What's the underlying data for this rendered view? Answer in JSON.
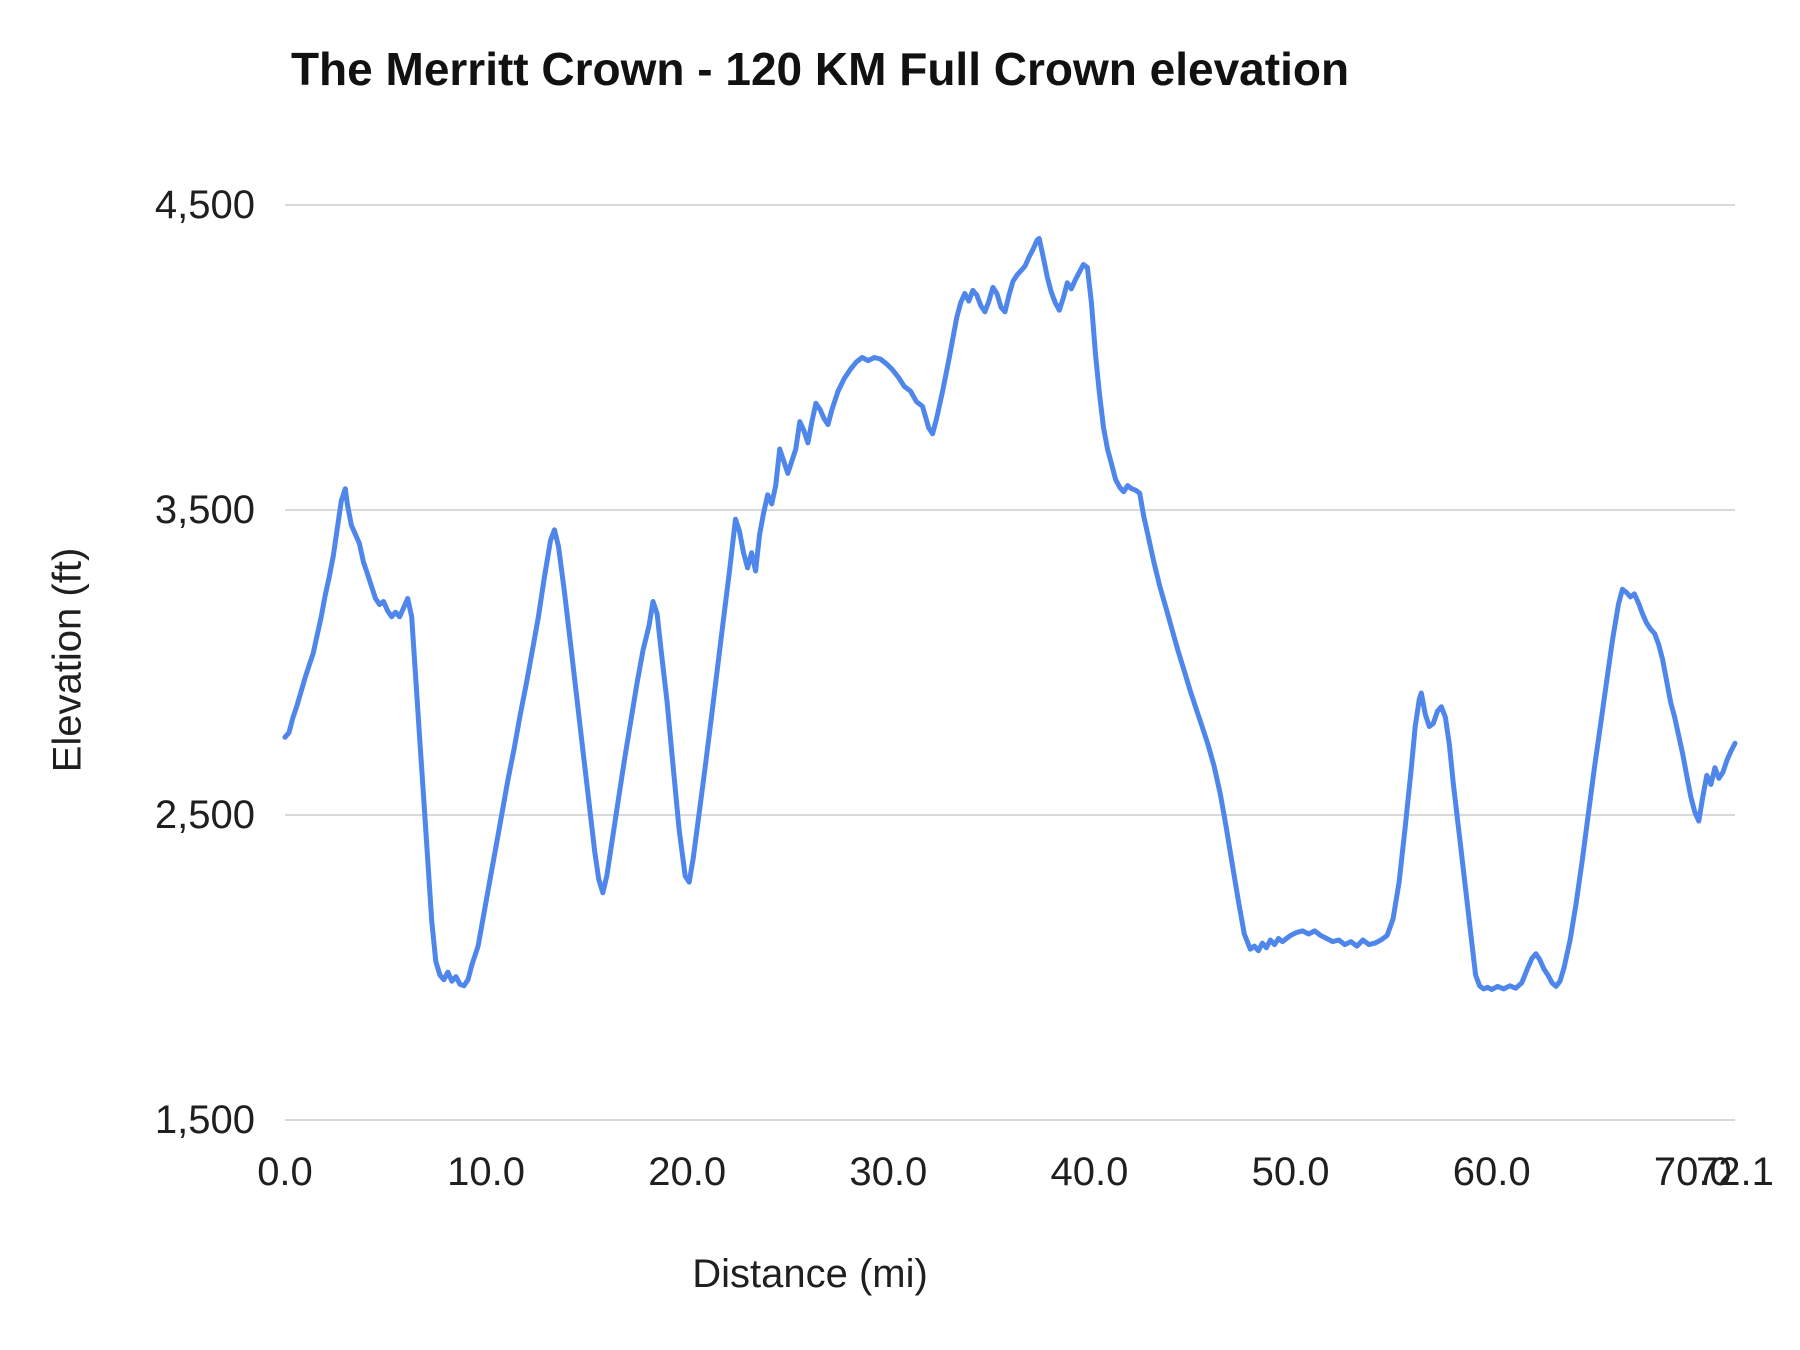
{
  "chart_data": {
    "type": "line",
    "title": "The Merritt Crown - 120 KM Full Crown elevation",
    "xlabel": "Distance (mi)",
    "ylabel": "Elevation (ft)",
    "xlim": [
      0,
      72.1
    ],
    "ylim": [
      1500,
      4500
    ],
    "grid": "horizontal-only",
    "legend": "none",
    "line_color": "#4e86ec",
    "grid_color": "#d9d9d9",
    "x_ticks": [
      {
        "value": 0,
        "label": "0.0"
      },
      {
        "value": 10,
        "label": "10.0"
      },
      {
        "value": 20,
        "label": "20.0"
      },
      {
        "value": 30,
        "label": "30.0"
      },
      {
        "value": 40,
        "label": "40.0"
      },
      {
        "value": 50,
        "label": "50.0"
      },
      {
        "value": 60,
        "label": "60.0"
      },
      {
        "value": 70,
        "label": "70.0"
      },
      {
        "value": 72.1,
        "label": "72.1"
      }
    ],
    "y_ticks": [
      {
        "value": 1500,
        "label": "1,500"
      },
      {
        "value": 2500,
        "label": "2,500"
      },
      {
        "value": 3500,
        "label": "3,500"
      },
      {
        "value": 4500,
        "label": "4,500"
      }
    ],
    "series": [
      {
        "name": "Elevation",
        "points": [
          [
            0,
            2755
          ],
          [
            0.2,
            2770
          ],
          [
            0.4,
            2820
          ],
          [
            0.6,
            2860
          ],
          [
            0.8,
            2905
          ],
          [
            1,
            2950
          ],
          [
            1.2,
            2990
          ],
          [
            1.4,
            3030
          ],
          [
            1.6,
            3090
          ],
          [
            1.8,
            3150
          ],
          [
            2,
            3220
          ],
          [
            2.2,
            3280
          ],
          [
            2.4,
            3350
          ],
          [
            2.6,
            3440
          ],
          [
            2.8,
            3530
          ],
          [
            3,
            3570
          ],
          [
            3.1,
            3520
          ],
          [
            3.3,
            3450
          ],
          [
            3.5,
            3420
          ],
          [
            3.7,
            3390
          ],
          [
            3.9,
            3330
          ],
          [
            4.1,
            3290
          ],
          [
            4.3,
            3250
          ],
          [
            4.5,
            3210
          ],
          [
            4.7,
            3190
          ],
          [
            4.9,
            3200
          ],
          [
            5.1,
            3170
          ],
          [
            5.3,
            3150
          ],
          [
            5.5,
            3165
          ],
          [
            5.7,
            3150
          ],
          [
            5.9,
            3180
          ],
          [
            6.1,
            3210
          ],
          [
            6.3,
            3150
          ],
          [
            6.5,
            2950
          ],
          [
            6.7,
            2750
          ],
          [
            6.9,
            2550
          ],
          [
            7.1,
            2350
          ],
          [
            7.3,
            2150
          ],
          [
            7.5,
            2020
          ],
          [
            7.7,
            1975
          ],
          [
            7.9,
            1960
          ],
          [
            8.1,
            1985
          ],
          [
            8.3,
            1955
          ],
          [
            8.5,
            1970
          ],
          [
            8.7,
            1945
          ],
          [
            8.9,
            1940
          ],
          [
            9.1,
            1960
          ],
          [
            9.3,
            2010
          ],
          [
            9.6,
            2070
          ],
          [
            9.9,
            2180
          ],
          [
            10.2,
            2290
          ],
          [
            10.5,
            2400
          ],
          [
            10.8,
            2510
          ],
          [
            11.1,
            2620
          ],
          [
            11.4,
            2720
          ],
          [
            11.7,
            2830
          ],
          [
            12,
            2930
          ],
          [
            12.3,
            3040
          ],
          [
            12.6,
            3150
          ],
          [
            12.9,
            3280
          ],
          [
            13.2,
            3400
          ],
          [
            13.4,
            3435
          ],
          [
            13.6,
            3380
          ],
          [
            13.9,
            3230
          ],
          [
            14.2,
            3060
          ],
          [
            14.5,
            2890
          ],
          [
            14.8,
            2720
          ],
          [
            15.1,
            2550
          ],
          [
            15.4,
            2380
          ],
          [
            15.6,
            2290
          ],
          [
            15.8,
            2245
          ],
          [
            16,
            2300
          ],
          [
            16.3,
            2430
          ],
          [
            16.6,
            2560
          ],
          [
            16.9,
            2690
          ],
          [
            17.2,
            2810
          ],
          [
            17.5,
            2930
          ],
          [
            17.8,
            3040
          ],
          [
            18.1,
            3120
          ],
          [
            18.3,
            3200
          ],
          [
            18.5,
            3160
          ],
          [
            18.7,
            3040
          ],
          [
            19,
            2870
          ],
          [
            19.3,
            2660
          ],
          [
            19.6,
            2450
          ],
          [
            19.9,
            2300
          ],
          [
            20.1,
            2280
          ],
          [
            20.3,
            2360
          ],
          [
            20.6,
            2510
          ],
          [
            20.9,
            2660
          ],
          [
            21.2,
            2820
          ],
          [
            21.5,
            2980
          ],
          [
            21.8,
            3140
          ],
          [
            22.1,
            3300
          ],
          [
            22.4,
            3470
          ],
          [
            22.6,
            3430
          ],
          [
            22.8,
            3360
          ],
          [
            23,
            3310
          ],
          [
            23.2,
            3360
          ],
          [
            23.4,
            3300
          ],
          [
            23.6,
            3420
          ],
          [
            23.8,
            3490
          ],
          [
            24,
            3550
          ],
          [
            24.2,
            3520
          ],
          [
            24.4,
            3580
          ],
          [
            24.6,
            3700
          ],
          [
            24.8,
            3660
          ],
          [
            25,
            3620
          ],
          [
            25.2,
            3660
          ],
          [
            25.4,
            3700
          ],
          [
            25.6,
            3790
          ],
          [
            25.8,
            3760
          ],
          [
            26,
            3720
          ],
          [
            26.2,
            3790
          ],
          [
            26.4,
            3850
          ],
          [
            26.6,
            3830
          ],
          [
            26.8,
            3800
          ],
          [
            27,
            3780
          ],
          [
            27.2,
            3830
          ],
          [
            27.5,
            3890
          ],
          [
            27.8,
            3930
          ],
          [
            28.1,
            3960
          ],
          [
            28.4,
            3985
          ],
          [
            28.7,
            4000
          ],
          [
            29,
            3990
          ],
          [
            29.3,
            4000
          ],
          [
            29.6,
            3995
          ],
          [
            29.9,
            3980
          ],
          [
            30.2,
            3960
          ],
          [
            30.5,
            3935
          ],
          [
            30.8,
            3905
          ],
          [
            31.1,
            3890
          ],
          [
            31.4,
            3855
          ],
          [
            31.7,
            3840
          ],
          [
            32,
            3770
          ],
          [
            32.2,
            3750
          ],
          [
            32.4,
            3800
          ],
          [
            32.7,
            3890
          ],
          [
            33,
            3990
          ],
          [
            33.2,
            4060
          ],
          [
            33.4,
            4130
          ],
          [
            33.6,
            4180
          ],
          [
            33.8,
            4210
          ],
          [
            34,
            4185
          ],
          [
            34.2,
            4220
          ],
          [
            34.4,
            4205
          ],
          [
            34.6,
            4170
          ],
          [
            34.8,
            4150
          ],
          [
            35,
            4185
          ],
          [
            35.2,
            4230
          ],
          [
            35.4,
            4210
          ],
          [
            35.6,
            4165
          ],
          [
            35.8,
            4150
          ],
          [
            36,
            4205
          ],
          [
            36.2,
            4250
          ],
          [
            36.4,
            4270
          ],
          [
            36.6,
            4285
          ],
          [
            36.8,
            4300
          ],
          [
            37,
            4330
          ],
          [
            37.2,
            4355
          ],
          [
            37.4,
            4385
          ],
          [
            37.5,
            4390
          ],
          [
            37.7,
            4330
          ],
          [
            37.9,
            4265
          ],
          [
            38.1,
            4215
          ],
          [
            38.3,
            4180
          ],
          [
            38.5,
            4155
          ],
          [
            38.7,
            4195
          ],
          [
            38.9,
            4245
          ],
          [
            39.1,
            4225
          ],
          [
            39.3,
            4255
          ],
          [
            39.5,
            4280
          ],
          [
            39.7,
            4305
          ],
          [
            39.9,
            4295
          ],
          [
            40.1,
            4180
          ],
          [
            40.3,
            4010
          ],
          [
            40.5,
            3880
          ],
          [
            40.7,
            3770
          ],
          [
            40.9,
            3700
          ],
          [
            41.1,
            3650
          ],
          [
            41.3,
            3600
          ],
          [
            41.5,
            3575
          ],
          [
            41.7,
            3560
          ],
          [
            41.9,
            3580
          ],
          [
            42.1,
            3570
          ],
          [
            42.3,
            3565
          ],
          [
            42.5,
            3555
          ],
          [
            42.7,
            3480
          ],
          [
            42.9,
            3420
          ],
          [
            43.2,
            3330
          ],
          [
            43.5,
            3250
          ],
          [
            43.8,
            3180
          ],
          [
            44.1,
            3110
          ],
          [
            44.4,
            3040
          ],
          [
            44.7,
            2975
          ],
          [
            45,
            2910
          ],
          [
            45.3,
            2850
          ],
          [
            45.6,
            2790
          ],
          [
            45.9,
            2730
          ],
          [
            46.2,
            2660
          ],
          [
            46.5,
            2570
          ],
          [
            46.8,
            2460
          ],
          [
            47.1,
            2340
          ],
          [
            47.4,
            2220
          ],
          [
            47.7,
            2110
          ],
          [
            48,
            2060
          ],
          [
            48.2,
            2070
          ],
          [
            48.4,
            2055
          ],
          [
            48.6,
            2080
          ],
          [
            48.8,
            2065
          ],
          [
            49,
            2090
          ],
          [
            49.2,
            2075
          ],
          [
            49.4,
            2095
          ],
          [
            49.6,
            2085
          ],
          [
            49.8,
            2095
          ],
          [
            50,
            2105
          ],
          [
            50.3,
            2115
          ],
          [
            50.6,
            2120
          ],
          [
            50.9,
            2110
          ],
          [
            51.2,
            2120
          ],
          [
            51.5,
            2105
          ],
          [
            51.8,
            2095
          ],
          [
            52.1,
            2085
          ],
          [
            52.4,
            2090
          ],
          [
            52.7,
            2075
          ],
          [
            53,
            2085
          ],
          [
            53.3,
            2070
          ],
          [
            53.6,
            2090
          ],
          [
            53.9,
            2075
          ],
          [
            54.2,
            2080
          ],
          [
            54.5,
            2090
          ],
          [
            54.8,
            2105
          ],
          [
            55.1,
            2160
          ],
          [
            55.4,
            2280
          ],
          [
            55.7,
            2460
          ],
          [
            56,
            2650
          ],
          [
            56.2,
            2790
          ],
          [
            56.4,
            2880
          ],
          [
            56.5,
            2900
          ],
          [
            56.7,
            2830
          ],
          [
            56.9,
            2790
          ],
          [
            57.1,
            2800
          ],
          [
            57.3,
            2840
          ],
          [
            57.5,
            2855
          ],
          [
            57.7,
            2820
          ],
          [
            57.9,
            2730
          ],
          [
            58.1,
            2600
          ],
          [
            58.4,
            2430
          ],
          [
            58.7,
            2260
          ],
          [
            59,
            2090
          ],
          [
            59.2,
            1975
          ],
          [
            59.4,
            1940
          ],
          [
            59.6,
            1930
          ],
          [
            59.8,
            1935
          ],
          [
            60,
            1928
          ],
          [
            60.3,
            1938
          ],
          [
            60.6,
            1930
          ],
          [
            60.9,
            1940
          ],
          [
            61.2,
            1932
          ],
          [
            61.5,
            1950
          ],
          [
            61.8,
            2000
          ],
          [
            62,
            2030
          ],
          [
            62.2,
            2045
          ],
          [
            62.4,
            2025
          ],
          [
            62.6,
            1995
          ],
          [
            62.8,
            1975
          ],
          [
            63,
            1950
          ],
          [
            63.2,
            1938
          ],
          [
            63.4,
            1955
          ],
          [
            63.6,
            2000
          ],
          [
            63.9,
            2090
          ],
          [
            64.2,
            2210
          ],
          [
            64.5,
            2350
          ],
          [
            64.8,
            2500
          ],
          [
            65.1,
            2650
          ],
          [
            65.4,
            2790
          ],
          [
            65.7,
            2930
          ],
          [
            66,
            3070
          ],
          [
            66.3,
            3190
          ],
          [
            66.5,
            3240
          ],
          [
            66.7,
            3230
          ],
          [
            66.9,
            3215
          ],
          [
            67.1,
            3225
          ],
          [
            67.3,
            3195
          ],
          [
            67.5,
            3160
          ],
          [
            67.7,
            3130
          ],
          [
            67.9,
            3110
          ],
          [
            68.1,
            3095
          ],
          [
            68.3,
            3060
          ],
          [
            68.5,
            3010
          ],
          [
            68.7,
            2940
          ],
          [
            68.9,
            2870
          ],
          [
            69.1,
            2820
          ],
          [
            69.3,
            2760
          ],
          [
            69.5,
            2700
          ],
          [
            69.7,
            2630
          ],
          [
            69.9,
            2560
          ],
          [
            70.1,
            2510
          ],
          [
            70.3,
            2480
          ],
          [
            70.5,
            2560
          ],
          [
            70.7,
            2630
          ],
          [
            70.9,
            2600
          ],
          [
            71.1,
            2655
          ],
          [
            71.3,
            2620
          ],
          [
            71.5,
            2640
          ],
          [
            71.7,
            2680
          ],
          [
            71.9,
            2710
          ],
          [
            72.1,
            2735
          ]
        ]
      }
    ]
  }
}
